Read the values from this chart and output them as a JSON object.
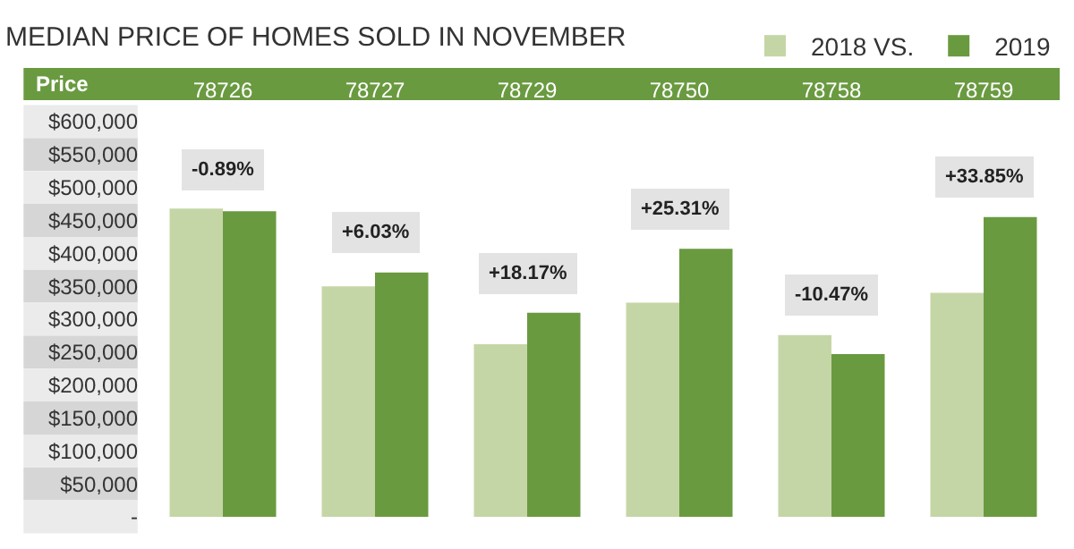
{
  "chart_data": {
    "type": "bar",
    "title": "MEDIAN PRICE OF HOMES SOLD IN NOVEMBER",
    "ylabel": "Price",
    "categories": [
      "78726",
      "78727",
      "78729",
      "78750",
      "78758",
      "78759"
    ],
    "series": [
      {
        "name": "2018 VS.",
        "color": "#c5d6a6",
        "values": [
          468000,
          350000,
          262000,
          325000,
          276000,
          340000
        ]
      },
      {
        "name": "2019",
        "color": "#6a9a40",
        "values": [
          464000,
          371000,
          310000,
          407000,
          247000,
          455000
        ]
      }
    ],
    "ylim": [
      0,
      600000
    ],
    "yticks": [
      {
        "value": 0,
        "label": "-"
      },
      {
        "value": 50000,
        "label": "$50,000"
      },
      {
        "value": 100000,
        "label": "$100,000"
      },
      {
        "value": 150000,
        "label": "$150,000"
      },
      {
        "value": 200000,
        "label": "$200,000"
      },
      {
        "value": 250000,
        "label": "$250,000"
      },
      {
        "value": 300000,
        "label": "$300,000"
      },
      {
        "value": 350000,
        "label": "$350,000"
      },
      {
        "value": 400000,
        "label": "$400,000"
      },
      {
        "value": 450000,
        "label": "$450,000"
      },
      {
        "value": 500000,
        "label": "$500,000"
      },
      {
        "value": 550000,
        "label": "$550,000"
      },
      {
        "value": 600000,
        "label": "$600,000"
      }
    ],
    "annotations": [
      {
        "text": "-0.89%",
        "x": "78726",
        "y": 468000
      },
      {
        "text": "+6.03%",
        "x": "78727",
        "y": 371000
      },
      {
        "text": "+18.17%",
        "x": "78729",
        "y": 310000
      },
      {
        "text": "+25.31%",
        "x": "78750",
        "y": 407000
      },
      {
        "text": "-10.47%",
        "x": "78758",
        "y": 276000
      },
      {
        "text": "+33.85%",
        "x": "78759",
        "y": 455000
      }
    ],
    "legend": "top right"
  }
}
